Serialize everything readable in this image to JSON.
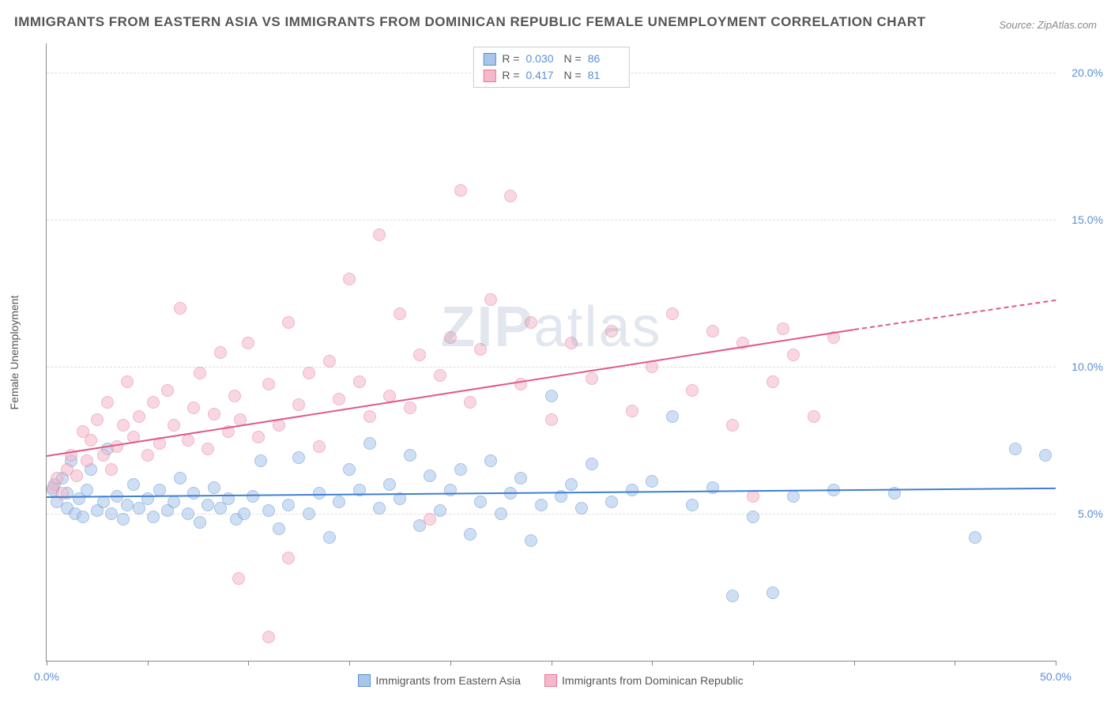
{
  "title": "IMMIGRANTS FROM EASTERN ASIA VS IMMIGRANTS FROM DOMINICAN REPUBLIC FEMALE UNEMPLOYMENT CORRELATION CHART",
  "source": "Source: ZipAtlas.com",
  "watermark_bold": "ZIP",
  "watermark_light": "atlas",
  "y_axis_label": "Female Unemployment",
  "chart": {
    "type": "scatter",
    "xlim": [
      0,
      50
    ],
    "ylim": [
      0,
      21
    ],
    "x_ticks": [
      0,
      5,
      10,
      15,
      20,
      25,
      30,
      35,
      40,
      45,
      50
    ],
    "x_tick_labels": {
      "0": "0.0%",
      "50": "50.0%"
    },
    "y_ticks": [
      5,
      10,
      15,
      20
    ],
    "y_tick_labels": {
      "5": "5.0%",
      "10": "10.0%",
      "15": "15.0%",
      "20": "20.0%"
    },
    "background_color": "#ffffff",
    "grid_color": "#dddddd",
    "marker_radius": 8,
    "marker_opacity": 0.55,
    "series": [
      {
        "name": "Immigrants from Eastern Asia",
        "color_fill": "#a8c5ea",
        "color_stroke": "#5b8fd6",
        "r_value": "0.030",
        "n_value": "86",
        "trend": {
          "x1": 0,
          "y1": 5.6,
          "x2": 50,
          "y2": 5.9,
          "color": "#3f7fd1"
        },
        "points": [
          [
            0.3,
            5.8
          ],
          [
            0.4,
            6.0
          ],
          [
            0.5,
            5.4
          ],
          [
            0.8,
            6.2
          ],
          [
            1.0,
            5.2
          ],
          [
            1.0,
            5.7
          ],
          [
            1.2,
            6.8
          ],
          [
            1.4,
            5.0
          ],
          [
            1.6,
            5.5
          ],
          [
            1.8,
            4.9
          ],
          [
            2.0,
            5.8
          ],
          [
            2.2,
            6.5
          ],
          [
            2.5,
            5.1
          ],
          [
            2.8,
            5.4
          ],
          [
            3.0,
            7.2
          ],
          [
            3.2,
            5.0
          ],
          [
            3.5,
            5.6
          ],
          [
            3.8,
            4.8
          ],
          [
            4.0,
            5.3
          ],
          [
            4.3,
            6.0
          ],
          [
            4.6,
            5.2
          ],
          [
            5.0,
            5.5
          ],
          [
            5.3,
            4.9
          ],
          [
            5.6,
            5.8
          ],
          [
            6.0,
            5.1
          ],
          [
            6.3,
            5.4
          ],
          [
            6.6,
            6.2
          ],
          [
            7.0,
            5.0
          ],
          [
            7.3,
            5.7
          ],
          [
            7.6,
            4.7
          ],
          [
            8.0,
            5.3
          ],
          [
            8.3,
            5.9
          ],
          [
            8.6,
            5.2
          ],
          [
            9.0,
            5.5
          ],
          [
            9.4,
            4.8
          ],
          [
            9.8,
            5.0
          ],
          [
            10.2,
            5.6
          ],
          [
            10.6,
            6.8
          ],
          [
            11.0,
            5.1
          ],
          [
            11.5,
            4.5
          ],
          [
            12.0,
            5.3
          ],
          [
            12.5,
            6.9
          ],
          [
            13.0,
            5.0
          ],
          [
            13.5,
            5.7
          ],
          [
            14.0,
            4.2
          ],
          [
            14.5,
            5.4
          ],
          [
            15.0,
            6.5
          ],
          [
            15.5,
            5.8
          ],
          [
            16.0,
            7.4
          ],
          [
            16.5,
            5.2
          ],
          [
            17.0,
            6.0
          ],
          [
            17.5,
            5.5
          ],
          [
            18.0,
            7.0
          ],
          [
            18.5,
            4.6
          ],
          [
            19.0,
            6.3
          ],
          [
            19.5,
            5.1
          ],
          [
            20.0,
            5.8
          ],
          [
            20.5,
            6.5
          ],
          [
            21.0,
            4.3
          ],
          [
            21.5,
            5.4
          ],
          [
            22.0,
            6.8
          ],
          [
            22.5,
            5.0
          ],
          [
            23.0,
            5.7
          ],
          [
            23.5,
            6.2
          ],
          [
            24.0,
            4.1
          ],
          [
            24.5,
            5.3
          ],
          [
            25.0,
            9.0
          ],
          [
            25.5,
            5.6
          ],
          [
            26.0,
            6.0
          ],
          [
            26.5,
            5.2
          ],
          [
            27.0,
            6.7
          ],
          [
            28.0,
            5.4
          ],
          [
            29.0,
            5.8
          ],
          [
            30.0,
            6.1
          ],
          [
            31.0,
            8.3
          ],
          [
            32.0,
            5.3
          ],
          [
            33.0,
            5.9
          ],
          [
            34.0,
            2.2
          ],
          [
            35.0,
            4.9
          ],
          [
            36.0,
            2.3
          ],
          [
            37.0,
            5.6
          ],
          [
            39.0,
            5.8
          ],
          [
            42.0,
            5.7
          ],
          [
            46.0,
            4.2
          ],
          [
            48.0,
            7.2
          ],
          [
            49.5,
            7.0
          ]
        ]
      },
      {
        "name": "Immigrants from Dominican Republic",
        "color_fill": "#f5b8c8",
        "color_stroke": "#e57a9a",
        "r_value": "0.417",
        "n_value": "81",
        "trend": {
          "x1": 0,
          "y1": 7.0,
          "x2": 40,
          "y2": 11.3,
          "dash_x2": 50,
          "dash_y2": 12.3,
          "color": "#e05a85"
        },
        "points": [
          [
            0.3,
            5.9
          ],
          [
            0.5,
            6.2
          ],
          [
            0.8,
            5.7
          ],
          [
            1.0,
            6.5
          ],
          [
            1.2,
            7.0
          ],
          [
            1.5,
            6.3
          ],
          [
            1.8,
            7.8
          ],
          [
            2.0,
            6.8
          ],
          [
            2.2,
            7.5
          ],
          [
            2.5,
            8.2
          ],
          [
            2.8,
            7.0
          ],
          [
            3.0,
            8.8
          ],
          [
            3.2,
            6.5
          ],
          [
            3.5,
            7.3
          ],
          [
            3.8,
            8.0
          ],
          [
            4.0,
            9.5
          ],
          [
            4.3,
            7.6
          ],
          [
            4.6,
            8.3
          ],
          [
            5.0,
            7.0
          ],
          [
            5.3,
            8.8
          ],
          [
            5.6,
            7.4
          ],
          [
            6.0,
            9.2
          ],
          [
            6.3,
            8.0
          ],
          [
            6.6,
            12.0
          ],
          [
            7.0,
            7.5
          ],
          [
            7.3,
            8.6
          ],
          [
            7.6,
            9.8
          ],
          [
            8.0,
            7.2
          ],
          [
            8.3,
            8.4
          ],
          [
            8.6,
            10.5
          ],
          [
            9.0,
            7.8
          ],
          [
            9.3,
            9.0
          ],
          [
            9.6,
            8.2
          ],
          [
            10.0,
            10.8
          ],
          [
            10.5,
            7.6
          ],
          [
            11.0,
            9.4
          ],
          [
            11.5,
            8.0
          ],
          [
            12.0,
            11.5
          ],
          [
            12.5,
            8.7
          ],
          [
            13.0,
            9.8
          ],
          [
            13.5,
            7.3
          ],
          [
            14.0,
            10.2
          ],
          [
            14.5,
            8.9
          ],
          [
            15.0,
            13.0
          ],
          [
            15.5,
            9.5
          ],
          [
            16.0,
            8.3
          ],
          [
            16.5,
            14.5
          ],
          [
            17.0,
            9.0
          ],
          [
            17.5,
            11.8
          ],
          [
            18.0,
            8.6
          ],
          [
            18.5,
            10.4
          ],
          [
            19.0,
            4.8
          ],
          [
            19.5,
            9.7
          ],
          [
            20.0,
            11.0
          ],
          [
            20.5,
            16.0
          ],
          [
            21.0,
            8.8
          ],
          [
            21.5,
            10.6
          ],
          [
            22.0,
            12.3
          ],
          [
            23.0,
            15.8
          ],
          [
            23.5,
            9.4
          ],
          [
            24.0,
            11.5
          ],
          [
            25.0,
            8.2
          ],
          [
            26.0,
            10.8
          ],
          [
            27.0,
            9.6
          ],
          [
            28.0,
            11.2
          ],
          [
            29.0,
            8.5
          ],
          [
            30.0,
            10.0
          ],
          [
            31.0,
            11.8
          ],
          [
            32.0,
            9.2
          ],
          [
            33.0,
            11.2
          ],
          [
            34.0,
            8.0
          ],
          [
            35.0,
            5.6
          ],
          [
            36.0,
            9.5
          ],
          [
            37.0,
            10.4
          ],
          [
            11.0,
            0.8
          ],
          [
            9.5,
            2.8
          ],
          [
            12.0,
            3.5
          ],
          [
            34.5,
            10.8
          ],
          [
            36.5,
            11.3
          ],
          [
            38.0,
            8.3
          ],
          [
            39.0,
            11.0
          ]
        ]
      }
    ]
  },
  "legend_bottom": [
    {
      "label": "Immigrants from Eastern Asia",
      "fill": "#a8c5ea",
      "stroke": "#5b8fd6"
    },
    {
      "label": "Immigrants from Dominican Republic",
      "fill": "#f5b8c8",
      "stroke": "#e57a9a"
    }
  ]
}
